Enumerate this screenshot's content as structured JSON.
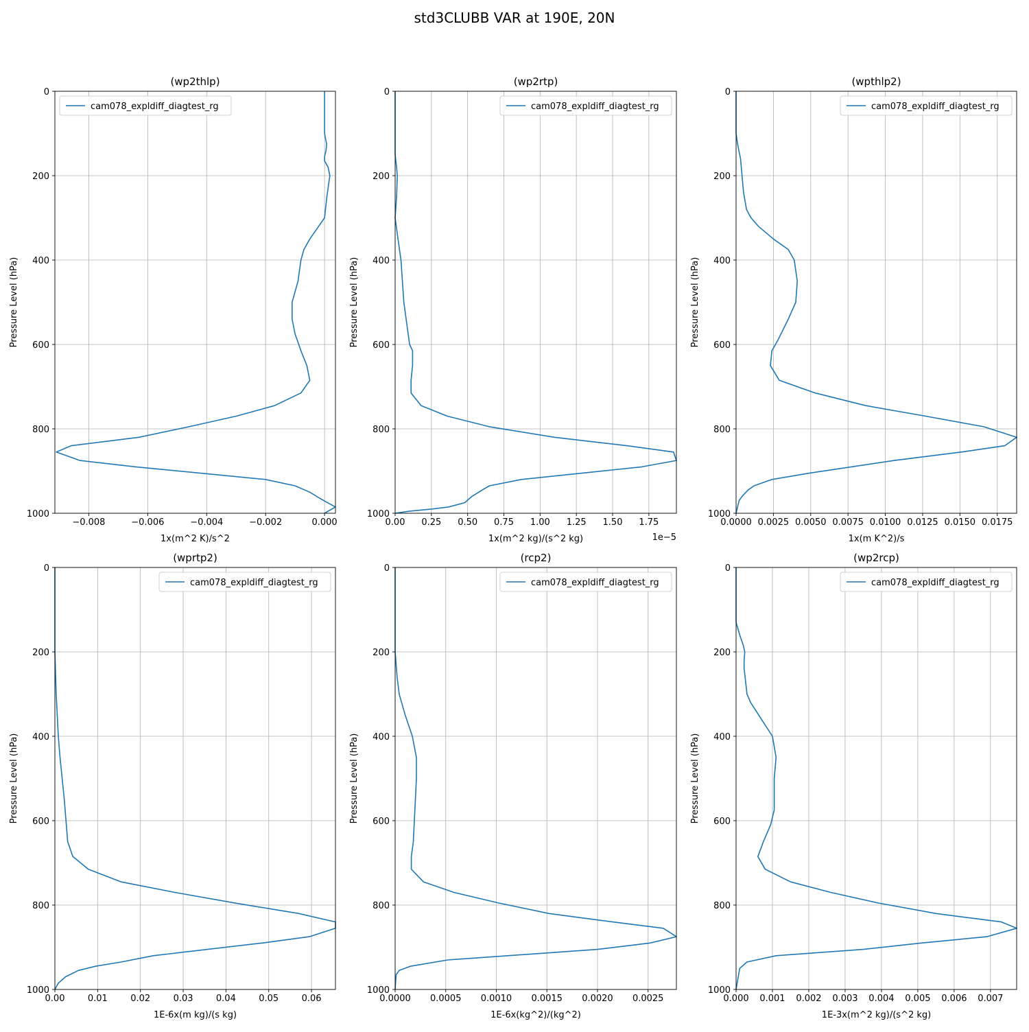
{
  "figure": {
    "title": "std3CLUBB VAR at 190E, 20N"
  },
  "line_color": "#1f77b4",
  "chart_data": [
    {
      "type": "line",
      "title": "(wp2thlp)",
      "xlabel": "1x(m^2 K)/s^2",
      "ylabel": "Pressure Level (hPa)",
      "legend": "cam078_expldiff_diagtest_rg",
      "legend_loc": "upper-left",
      "xlim": [
        -0.00915,
        0.00037
      ],
      "ylim": [
        1000,
        0
      ],
      "xticks": [
        -0.008,
        -0.006,
        -0.004,
        -0.002,
        0.0
      ],
      "xtick_labels": [
        "−0.008",
        "−0.006",
        "−0.004",
        "−0.002",
        "0.000"
      ],
      "yticks": [
        0,
        200,
        400,
        600,
        800,
        1000
      ],
      "ytick_labels": [
        "0",
        "200",
        "400",
        "600",
        "800",
        "1000"
      ],
      "offset_label": "",
      "x": [
        0.0,
        0.0,
        0.0,
        7e-05,
        5e-05,
        0.0,
        0.0,
        0.00012,
        0.00018,
        8e-05,
        0.0,
        -0.0002,
        -0.0005,
        -0.0007,
        -0.0008,
        -0.0009,
        -0.0011,
        -0.0011,
        -0.001,
        -0.0008,
        -0.0006,
        -0.0005,
        -0.0008,
        -0.0017,
        -0.003,
        -0.0046,
        -0.0063,
        -0.0086,
        -0.0091,
        -0.0083,
        -0.0064,
        -0.002,
        -0.001,
        -0.0005,
        -0.00015,
        0.0001,
        0.00037,
        0.0
      ],
      "y": [
        0,
        50,
        100,
        125,
        140,
        155,
        165,
        180,
        200,
        250,
        300,
        320,
        350,
        375,
        400,
        450,
        500,
        540,
        575,
        615,
        650,
        685,
        715,
        745,
        770,
        795,
        820,
        840,
        855,
        875,
        890,
        920,
        935,
        950,
        965,
        975,
        985,
        1000
      ]
    },
    {
      "type": "line",
      "title": "(wp2rtp)",
      "xlabel": "1x(m^2 kg)/(s^2 kg)",
      "ylabel": "Pressure Level (hPa)",
      "legend": "cam078_expldiff_diagtest_rg",
      "legend_loc": "upper-right",
      "xlim": [
        0.0,
        1.94
      ],
      "ylim": [
        1000,
        0
      ],
      "xticks": [
        0,
        0.25,
        0.5,
        0.75,
        1.0,
        1.25,
        1.5,
        1.75
      ],
      "xtick_labels": [
        "0.00",
        "0.25",
        "0.50",
        "0.75",
        "1.00",
        "1.25",
        "1.50",
        "1.75"
      ],
      "yticks": [
        0,
        200,
        400,
        600,
        800,
        1000
      ],
      "ytick_labels": [
        "0",
        "200",
        "400",
        "600",
        "800",
        "1000"
      ],
      "offset_label": "1e−5",
      "x": [
        0.0,
        0.0,
        0.0,
        0.01,
        0.015,
        0.01,
        0.0,
        0.02,
        0.04,
        0.05,
        0.06,
        0.08,
        0.1,
        0.12,
        0.12,
        0.11,
        0.11,
        0.18,
        0.36,
        0.65,
        1.1,
        1.6,
        1.92,
        1.94,
        1.7,
        0.87,
        0.65,
        0.6,
        0.53,
        0.48,
        0.37,
        0.25,
        0.1,
        0.0
      ],
      "y": [
        0,
        100,
        150,
        180,
        200,
        250,
        300,
        350,
        400,
        450,
        500,
        550,
        600,
        615,
        650,
        685,
        715,
        745,
        770,
        795,
        820,
        840,
        855,
        875,
        890,
        920,
        935,
        945,
        960,
        975,
        985,
        990,
        995,
        1000
      ]
    },
    {
      "type": "line",
      "title": "(wpthlp2)",
      "xlabel": "1x(m K^2)/s",
      "ylabel": "Pressure Level (hPa)",
      "legend": "cam078_expldiff_diagtest_rg",
      "legend_loc": "upper-right",
      "xlim": [
        0.0,
        0.0188
      ],
      "ylim": [
        1000,
        0
      ],
      "xticks": [
        0,
        0.0025,
        0.005,
        0.0075,
        0.01,
        0.0125,
        0.015,
        0.0175
      ],
      "xtick_labels": [
        "0.0000",
        "0.0025",
        "0.0050",
        "0.0075",
        "0.0100",
        "0.0125",
        "0.0150",
        "0.0175"
      ],
      "yticks": [
        0,
        200,
        400,
        600,
        800,
        1000
      ],
      "ytick_labels": [
        "0",
        "200",
        "400",
        "600",
        "800",
        "1000"
      ],
      "offset_label": "",
      "x": [
        0.0,
        0.0,
        0.0001,
        0.0003,
        0.0004,
        0.0005,
        0.0007,
        0.001,
        0.0015,
        0.0025,
        0.0035,
        0.0039,
        0.0041,
        0.004,
        0.0035,
        0.0028,
        0.0024,
        0.0023,
        0.0029,
        0.0053,
        0.0087,
        0.0127,
        0.0166,
        0.0188,
        0.018,
        0.0151,
        0.0106,
        0.0049,
        0.0024,
        0.0012,
        0.0008,
        0.0004,
        0.0002,
        0.0001,
        0.0
      ],
      "y": [
        0,
        100,
        125,
        160,
        200,
        240,
        280,
        300,
        320,
        350,
        375,
        400,
        450,
        500,
        540,
        590,
        615,
        650,
        685,
        715,
        745,
        770,
        795,
        820,
        840,
        855,
        875,
        905,
        920,
        935,
        945,
        960,
        970,
        985,
        1000
      ]
    },
    {
      "type": "line",
      "title": "(wprtp2)",
      "xlabel": "1E-6x(m kg)/(s kg)",
      "ylabel": "Pressure Level (hPa)",
      "legend": "cam078_expldiff_diagtest_rg",
      "legend_loc": "upper-right",
      "xlim": [
        0.0,
        0.0656
      ],
      "ylim": [
        1000,
        0
      ],
      "xticks": [
        0,
        0.01,
        0.02,
        0.03,
        0.04,
        0.05,
        0.06
      ],
      "xtick_labels": [
        "0.00",
        "0.01",
        "0.02",
        "0.03",
        "0.04",
        "0.05",
        "0.06"
      ],
      "yticks": [
        0,
        200,
        400,
        600,
        800,
        1000
      ],
      "ytick_labels": [
        "0",
        "200",
        "400",
        "600",
        "800",
        "1000"
      ],
      "offset_label": "",
      "x": [
        0.0,
        0.0,
        0.0003,
        0.0008,
        0.0012,
        0.0017,
        0.0022,
        0.0026,
        0.003,
        0.0042,
        0.0078,
        0.0155,
        0.028,
        0.042,
        0.057,
        0.0656,
        0.0656,
        0.0595,
        0.0485,
        0.023,
        0.0155,
        0.0095,
        0.0055,
        0.0025,
        0.0008,
        0.0
      ],
      "y": [
        0,
        200,
        300,
        400,
        450,
        500,
        550,
        600,
        650,
        685,
        715,
        745,
        770,
        795,
        820,
        840,
        855,
        875,
        890,
        920,
        935,
        945,
        955,
        970,
        985,
        1000
      ]
    },
    {
      "type": "line",
      "title": "(rcp2)",
      "xlabel": "1E-6x(kg^2)/(kg^2)",
      "ylabel": "Pressure Level (hPa)",
      "legend": "cam078_expldiff_diagtest_rg",
      "legend_loc": "upper-right",
      "xlim": [
        0.0,
        0.00278
      ],
      "ylim": [
        1000,
        0
      ],
      "xticks": [
        0,
        0.0005,
        0.001,
        0.0015,
        0.002,
        0.0025
      ],
      "xtick_labels": [
        "0.0000",
        "0.0005",
        "0.0010",
        "0.0015",
        "0.0020",
        "0.0025"
      ],
      "yticks": [
        0,
        200,
        400,
        600,
        800,
        1000
      ],
      "ytick_labels": [
        "0",
        "200",
        "400",
        "600",
        "800",
        "1000"
      ],
      "offset_label": "",
      "x": [
        0.0,
        0.0,
        0.0,
        2e-05,
        4e-05,
        0.0001,
        0.00017,
        0.00021,
        0.00021,
        0.0002,
        0.00019,
        0.00018,
        0.00016,
        0.00016,
        0.00028,
        0.00058,
        0.00102,
        0.00152,
        0.00215,
        0.00265,
        0.00278,
        0.00252,
        0.002,
        0.00052,
        0.00015,
        4e-05,
        1e-05,
        0.0
      ],
      "y": [
        0,
        100,
        200,
        260,
        300,
        350,
        400,
        450,
        500,
        550,
        600,
        650,
        685,
        715,
        745,
        770,
        795,
        820,
        840,
        855,
        875,
        890,
        905,
        930,
        945,
        955,
        965,
        1000
      ]
    },
    {
      "type": "line",
      "title": "(wp2rcp)",
      "xlabel": "1E-3x(m^2 kg)/(s^2 kg)",
      "ylabel": "Pressure Level (hPa)",
      "legend": "cam078_expldiff_diagtest_rg",
      "legend_loc": "upper-right",
      "xlim": [
        0.0,
        0.00772
      ],
      "ylim": [
        1000,
        0
      ],
      "xticks": [
        0,
        0.001,
        0.002,
        0.003,
        0.004,
        0.005,
        0.006,
        0.007
      ],
      "xtick_labels": [
        "0.000",
        "0.001",
        "0.002",
        "0.003",
        "0.004",
        "0.005",
        "0.006",
        "0.007"
      ],
      "yticks": [
        0,
        200,
        400,
        600,
        800,
        1000
      ],
      "ytick_labels": [
        "0",
        "200",
        "400",
        "600",
        "800",
        "1000"
      ],
      "offset_label": "",
      "x": [
        0.0,
        0.0,
        0.0001,
        0.0002,
        0.00024,
        0.00022,
        0.00022,
        0.00025,
        0.0003,
        0.0004,
        0.0007,
        0.001,
        0.0011,
        0.00105,
        0.00105,
        0.00105,
        0.00095,
        0.00075,
        0.0006,
        0.0008,
        0.0015,
        0.0026,
        0.0039,
        0.0055,
        0.0073,
        0.00772,
        0.0069,
        0.0051,
        0.0035,
        0.0011,
        0.0003,
        0.0001,
        0.0
      ],
      "y": [
        0,
        130,
        160,
        185,
        200,
        220,
        240,
        260,
        300,
        320,
        360,
        400,
        450,
        500,
        540,
        575,
        610,
        650,
        685,
        715,
        745,
        770,
        795,
        820,
        840,
        855,
        875,
        890,
        905,
        920,
        935,
        950,
        1000
      ]
    }
  ]
}
